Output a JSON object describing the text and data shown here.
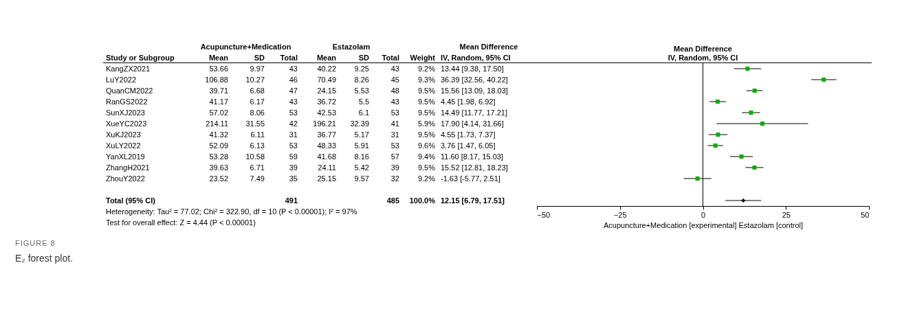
{
  "chart_data": [
    {
      "type": "other",
      "annotations": [
        "Acupuncture+Medication",
        "Estazolam",
        "Mean Difference",
        "Study or Subgroup",
        "Mean",
        "SD",
        "Total",
        "Mean",
        "SD",
        "Total",
        "Weight",
        "IV, Random, 95% CI",
        "KangZX2021",
        "53.66",
        "9.97",
        "43",
        "40.22",
        "9.25",
        "43",
        "9.2%",
        "13.44 [9.38, 17.50]",
        "LuY2022",
        "106.88",
        "10.27",
        "46",
        "70.49",
        "8.26",
        "45",
        "9.3%",
        "36.39 [32.56, 40.22]",
        "QuanCM2022",
        "39.71",
        "6.68",
        "47",
        "24.15",
        "5.53",
        "48",
        "9.5%",
        "15.56 [13.09, 18.03]",
        "RanGS2022",
        "41.17",
        "6.17",
        "43",
        "36.72",
        "5.5",
        "43",
        "9.5%",
        "4.45 [1.98, 6.92]",
        "SunXJ2023",
        "57.02",
        "8.06",
        "53",
        "42.53",
        "6.1",
        "53",
        "9.5%",
        "14.49 [11.77, 17.21]",
        "XueYC2023",
        "214.11",
        "31.55",
        "42",
        "196.21",
        "32.39",
        "41",
        "5.9%",
        "17.90 [4.14, 31.66]",
        "XuKJ2023",
        "41.32",
        "6.11",
        "31",
        "36.77",
        "5.17",
        "31",
        "9.5%",
        "4.55 [1.73, 7.37]",
        "XuLY2022",
        "52.09",
        "6.13",
        "53",
        "48.33",
        "5.91",
        "53",
        "9.6%",
        "3.76 [1.47, 6.05]",
        "YanXL2019",
        "53.28",
        "10.58",
        "59",
        "41.68",
        "8.16",
        "57",
        "9.4%",
        "11.60 [8.17, 15.03]",
        "ZhangH2021",
        "39.63",
        "6.71",
        "39",
        "24.11",
        "5.42",
        "39",
        "9.5%",
        "15.52 [12.81, 18.23]",
        "ZhouY2022",
        "23.52",
        "7.49",
        "35",
        "25.15",
        "9.57",
        "32",
        "9.2%",
        "-1.63 [-5.77, 2.51]",
        "Total (95% CI)",
        "491",
        "485",
        "100.0%",
        "12.15 [6.79, 17.51]",
        "Heterogeneity: Tau² = 77.02; Chi² = 322.90, df = 10 (P < 0.00001); I² = 97%",
        "Test for overall effect: Z = 4.44 (P < 0.00001)",
        "FIGURE 8",
        "E₂ forest plot."
      ]
    },
    {
      "type": "scatter",
      "orientation": "horizontal",
      "title": "Mean Difference",
      "subtitle": "IV, Random, 95% CI",
      "xlabel": "Acupuncture+Medication [experimental]   Estazolam [control]",
      "categories": [
        null,
        null,
        null,
        null,
        null,
        null,
        null,
        null,
        null,
        null,
        null,
        null,
        null
      ],
      "marker": "square",
      "legend": false,
      "tick_labels": "x",
      "xlim": [
        -50,
        50
      ],
      "xticks": [
        -50,
        -25,
        0,
        25,
        50
      ],
      "ref_lines": [
        {
          "axis": "x",
          "value": 0,
          "color": "#000000"
        }
      ],
      "series": [
        {
          "color": "#00b000",
          "values": [
            13.44,
            36.39,
            15.56,
            4.45,
            14.49,
            17.9,
            4.55,
            3.76,
            11.6,
            15.52,
            -1.63,
            null,
            null
          ],
          "errors": [
            [
              9.38,
              17.5
            ],
            [
              32.56,
              40.22
            ],
            [
              13.09,
              18.03
            ],
            [
              1.98,
              6.92
            ],
            [
              11.77,
              17.21
            ],
            [
              4.14,
              31.66
            ],
            [
              1.73,
              7.37
            ],
            [
              1.47,
              6.05
            ],
            [
              8.17,
              15.03
            ],
            [
              12.81,
              18.23
            ],
            [
              -5.77,
              2.51
            ],
            null,
            null
          ]
        },
        {
          "color": "#000000",
          "marker": "diamond",
          "values": [
            null,
            null,
            null,
            null,
            null,
            null,
            null,
            null,
            null,
            null,
            null,
            null,
            12.15
          ],
          "errors": [
            null,
            null,
            null,
            null,
            null,
            null,
            null,
            null,
            null,
            null,
            null,
            null,
            [
              6.79,
              17.51
            ]
          ]
        }
      ]
    }
  ]
}
